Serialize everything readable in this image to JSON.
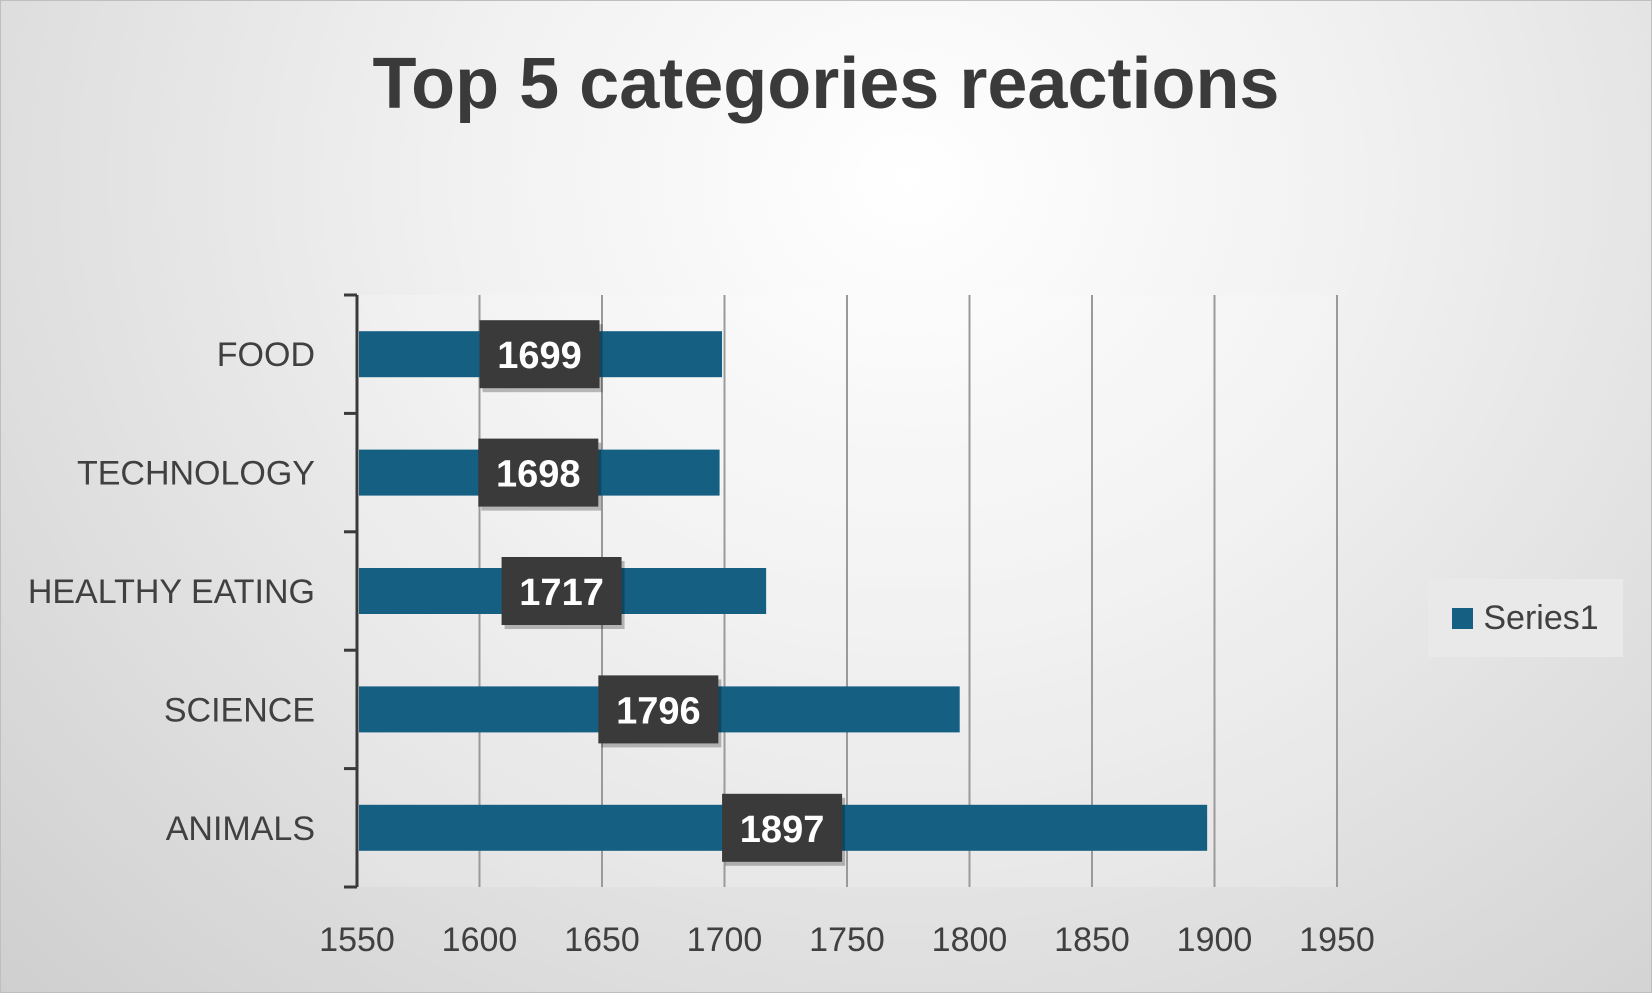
{
  "chart_data": {
    "type": "bar",
    "orientation": "horizontal",
    "title": "Top 5 categories reactions",
    "xlabel": "",
    "ylabel": "",
    "categories": [
      "FOOD",
      "TECHNOLOGY",
      "HEALTHY EATING",
      "SCIENCE",
      "ANIMALS"
    ],
    "series": [
      {
        "name": "Series1",
        "values": [
          1699,
          1698,
          1717,
          1796,
          1897
        ]
      }
    ],
    "data_labels": [
      "1699",
      "1698",
      "1717",
      "1796",
      "1897"
    ],
    "xlim": [
      1550,
      1950
    ],
    "x_ticks": [
      "1550",
      "1600",
      "1650",
      "1700",
      "1750",
      "1800",
      "1850",
      "1900",
      "1950"
    ],
    "grid": "vertical",
    "legend_position": "right",
    "colors": {
      "bar": "#155f82",
      "data_label_bg": "#3a3a3a",
      "data_label_text": "#ffffff",
      "grid": "#9a9a9a",
      "axis": "#3a3a3a",
      "text": "#404040"
    }
  }
}
